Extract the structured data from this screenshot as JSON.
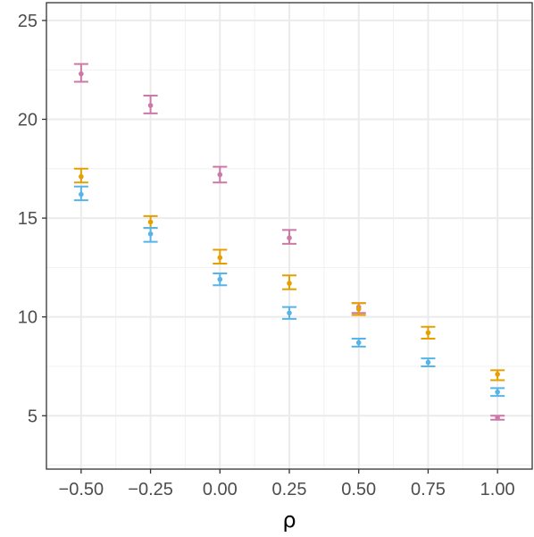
{
  "chart_data": {
    "type": "scatter",
    "title": "",
    "xlabel": "ρ",
    "ylabel": "",
    "xlim": [
      -0.625,
      1.125
    ],
    "ylim": [
      2.3,
      25.9
    ],
    "x_ticks": [
      -0.5,
      -0.25,
      0.0,
      0.25,
      0.5,
      0.75,
      1.0
    ],
    "x_tick_labels": [
      "−0.50",
      "−0.25",
      "0.00",
      "0.25",
      "0.50",
      "0.75",
      "1.00"
    ],
    "y_ticks": [
      5,
      10,
      15,
      20,
      25
    ],
    "y_tick_labels": [
      "5",
      "10",
      "15",
      "20",
      "25"
    ],
    "grid": true,
    "legend": "none",
    "error_bars": true,
    "series": [
      {
        "color": "#CC79A7",
        "points": [
          {
            "x": -0.5,
            "y": 22.3,
            "lo": 21.9,
            "hi": 22.8
          },
          {
            "x": -0.25,
            "y": 20.7,
            "lo": 20.3,
            "hi": 21.2
          },
          {
            "x": 0.0,
            "y": 17.2,
            "lo": 16.8,
            "hi": 17.6
          },
          {
            "x": 0.25,
            "y": 14.0,
            "lo": 13.7,
            "hi": 14.4
          },
          {
            "x": 0.5,
            "y": 10.5,
            "lo": 10.2,
            "hi": 10.7
          },
          {
            "x": 1.0,
            "y": 4.9,
            "lo": 4.8,
            "hi": 5.0
          }
        ]
      },
      {
        "color": "#E69F00",
        "points": [
          {
            "x": -0.5,
            "y": 17.1,
            "lo": 16.8,
            "hi": 17.5
          },
          {
            "x": -0.25,
            "y": 14.8,
            "lo": 14.5,
            "hi": 15.1
          },
          {
            "x": 0.0,
            "y": 13.0,
            "lo": 12.7,
            "hi": 13.4
          },
          {
            "x": 0.25,
            "y": 11.7,
            "lo": 11.4,
            "hi": 12.1
          },
          {
            "x": 0.5,
            "y": 10.4,
            "lo": 10.1,
            "hi": 10.7
          },
          {
            "x": 0.75,
            "y": 9.2,
            "lo": 8.9,
            "hi": 9.5
          },
          {
            "x": 1.0,
            "y": 7.1,
            "lo": 6.8,
            "hi": 7.3
          }
        ]
      },
      {
        "color": "#56B4E9",
        "points": [
          {
            "x": -0.5,
            "y": 16.2,
            "lo": 15.9,
            "hi": 16.6
          },
          {
            "x": -0.25,
            "y": 14.2,
            "lo": 13.8,
            "hi": 14.5
          },
          {
            "x": 0.0,
            "y": 11.9,
            "lo": 11.6,
            "hi": 12.2
          },
          {
            "x": 0.25,
            "y": 10.2,
            "lo": 9.9,
            "hi": 10.5
          },
          {
            "x": 0.5,
            "y": 8.7,
            "lo": 8.5,
            "hi": 8.9
          },
          {
            "x": 0.75,
            "y": 7.7,
            "lo": 7.5,
            "hi": 7.9
          },
          {
            "x": 1.0,
            "y": 6.2,
            "lo": 6.0,
            "hi": 6.4
          }
        ]
      }
    ]
  }
}
